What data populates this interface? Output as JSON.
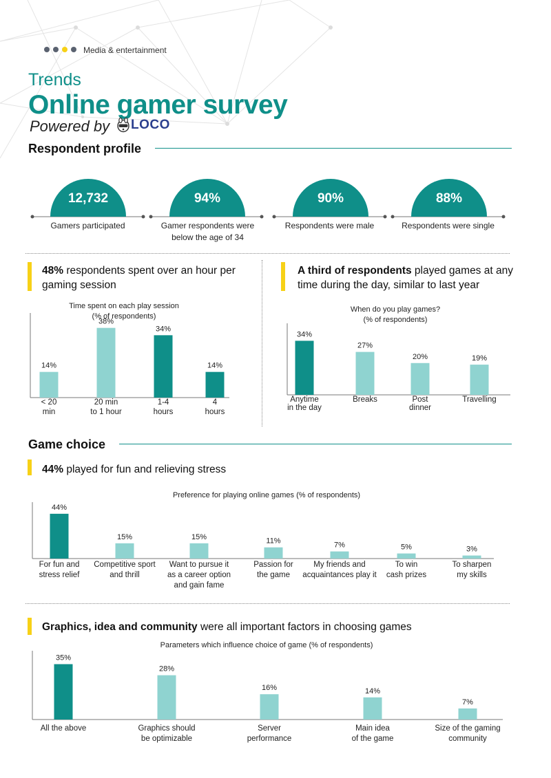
{
  "header": {
    "category": "Media & entertainment",
    "kicker": "Trends",
    "title": "Online gamer survey",
    "powered_by": "Powered by",
    "logo_text": "LOCO"
  },
  "colors": {
    "teal": "#0f8f89",
    "light_teal": "#8fd3d0",
    "yellow": "#f7d117",
    "dot_gray": "#5a6270"
  },
  "profile": {
    "title": "Respondent profile",
    "stats": [
      {
        "value": "12,732",
        "label": "Gamers participated"
      },
      {
        "value": "94%",
        "label": "Gamer respondents were below the age of 34"
      },
      {
        "value": "90%",
        "label": "Respondents were male"
      },
      {
        "value": "88%",
        "label": "Respondents were single"
      }
    ]
  },
  "session": {
    "headline_bold": "48%",
    "headline_rest": " respondents spent over an hour per gaming session"
  },
  "timing": {
    "headline_bold": "A third of respondents",
    "headline_rest": " played games at any time during the day, similar to last year"
  },
  "game_choice": {
    "title": "Game choice",
    "headline_bold": "44%",
    "headline_rest": " played for fun and relieving stress"
  },
  "factors": {
    "headline_bold": "Graphics, idea and community",
    "headline_rest": " were all important factors in choosing games"
  },
  "chart_data": [
    {
      "id": "session",
      "type": "bar",
      "title": "Time spent on each play session",
      "subtitle": "(% of respondents)",
      "categories": [
        [
          "< 20",
          "min"
        ],
        [
          "20 min",
          "to 1 hour"
        ],
        [
          "1-4",
          "hours"
        ],
        [
          "4",
          "hours"
        ]
      ],
      "values": [
        14,
        38,
        34,
        14
      ],
      "value_labels": [
        "14%",
        "38%",
        "34%",
        "14%"
      ],
      "highlight": [
        false,
        false,
        true,
        true
      ],
      "ylim": [
        0,
        45
      ]
    },
    {
      "id": "timing",
      "type": "bar",
      "title": "When do you play games?",
      "subtitle": "(% of respondents)",
      "categories": [
        [
          "Anytime",
          "in the day"
        ],
        [
          "Breaks"
        ],
        [
          "Post",
          "dinner"
        ],
        [
          "Travelling"
        ]
      ],
      "values": [
        34,
        27,
        20,
        19
      ],
      "value_labels": [
        "34%",
        "27%",
        "20%",
        "19%"
      ],
      "highlight": [
        true,
        false,
        false,
        false
      ],
      "ylim": [
        0,
        45
      ]
    },
    {
      "id": "preference",
      "type": "bar",
      "title": "Preference for playing online games (% of respondents)",
      "categories": [
        [
          "For fun and",
          "stress relief"
        ],
        [
          "Competitive sport",
          "and thrill"
        ],
        [
          "Want to pursue it",
          "as a career option",
          "and gain fame"
        ],
        [
          "Passion for",
          "the game"
        ],
        [
          "My friends and",
          "acquaintances play it"
        ],
        [
          "To win",
          "cash prizes"
        ],
        [
          "To sharpen",
          "my skills"
        ]
      ],
      "values": [
        44,
        15,
        15,
        11,
        7,
        5,
        3
      ],
      "value_labels": [
        "44%",
        "15%",
        "15%",
        "11%",
        "7%",
        "5%",
        "3%"
      ],
      "highlight": [
        true,
        false,
        false,
        false,
        false,
        false,
        false
      ],
      "ylim": [
        0,
        50
      ]
    },
    {
      "id": "parameters",
      "type": "bar",
      "title": "Parameters which influence choice of game (% of respondents)",
      "categories": [
        [
          "All the above"
        ],
        [
          "Graphics should",
          "be optimizable"
        ],
        [
          "Server",
          "performance"
        ],
        [
          "Main idea",
          "of the game"
        ],
        [
          "Size of the gaming",
          "community"
        ]
      ],
      "values": [
        35,
        28,
        16,
        14,
        7
      ],
      "value_labels": [
        "35%",
        "28%",
        "16%",
        "14%",
        "7%"
      ],
      "highlight": [
        true,
        false,
        false,
        false,
        false
      ],
      "ylim": [
        0,
        40
      ]
    }
  ]
}
